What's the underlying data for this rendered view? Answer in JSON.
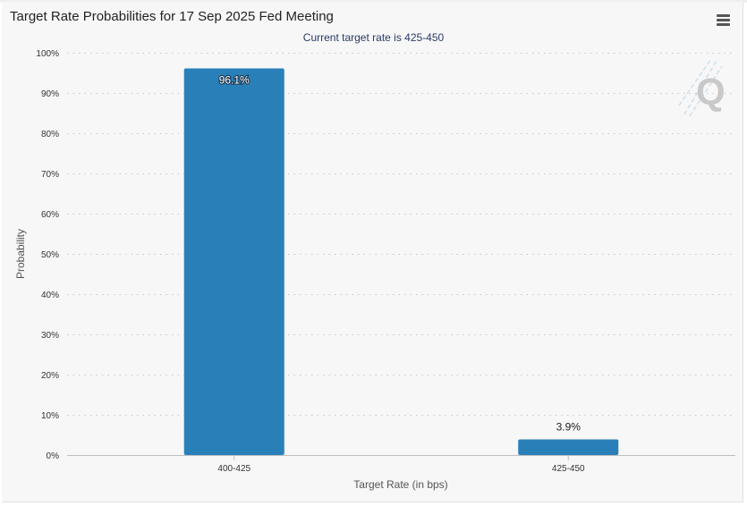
{
  "chart_data": {
    "type": "bar",
    "title": "Target Rate Probabilities for 17 Sep 2025 Fed Meeting",
    "subtitle": "Current target rate is 425-450",
    "xlabel": "Target Rate (in bps)",
    "ylabel": "Probability",
    "categories": [
      "400-425",
      "425-450"
    ],
    "values": [
      96.1,
      3.9
    ],
    "data_labels": [
      "96.1%",
      "3.9%"
    ],
    "y_ticks": [
      "0%",
      "10%",
      "20%",
      "30%",
      "40%",
      "50%",
      "60%",
      "70%",
      "80%",
      "90%",
      "100%"
    ],
    "ylim": [
      0,
      100
    ],
    "grid": true,
    "legend": "none",
    "bar_color": "#2980b9"
  },
  "toolbar": {
    "menu_icon": "hamburger-menu-icon"
  },
  "watermark_icon": "cme-q-logo-icon"
}
